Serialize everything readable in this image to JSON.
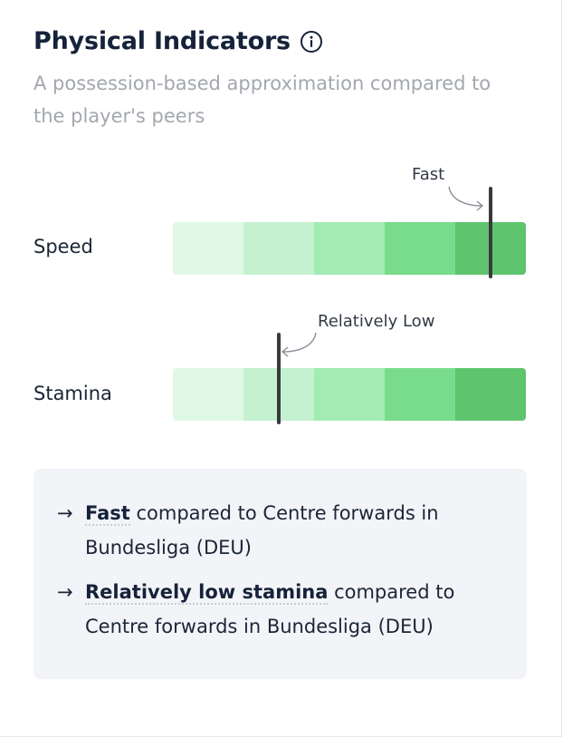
{
  "header": {
    "title": "Physical Indicators",
    "info_icon": "info-circle-icon",
    "subtitle": "A possession-based approximation compared to the player's peers"
  },
  "indicators": [
    {
      "label": "Speed",
      "annotation": "Fast",
      "level_fraction": 0.9,
      "segments": 5
    },
    {
      "label": "Stamina",
      "annotation": "Relatively Low",
      "level_fraction": 0.3,
      "segments": 5
    }
  ],
  "colors": {
    "segment_1": "#e0f8e6",
    "segment_2": "#c4f1d0",
    "segment_3": "#a2ebb3",
    "segment_4": "#79dc8d",
    "segment_5": "#5ec46d",
    "marker": "#3a3a3c"
  },
  "summary": {
    "items": [
      {
        "arrow": "→",
        "bold": "Fast",
        "rest": " compared to Centre forwards in Bundesliga (DEU)"
      },
      {
        "arrow": "→",
        "bold": "Relatively low stamina",
        "rest": " compared to Centre forwards in Bundesliga (DEU)"
      }
    ]
  }
}
